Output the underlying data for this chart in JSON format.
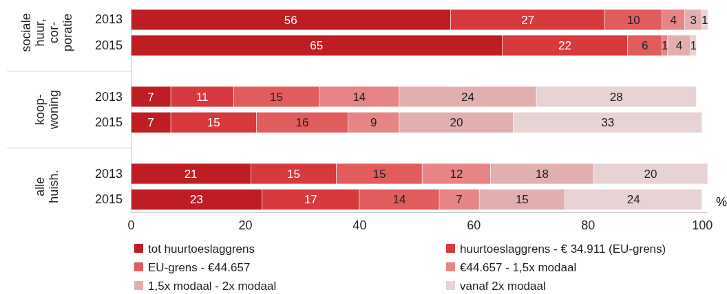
{
  "chart_data": {
    "type": "bar",
    "orientation": "horizontal",
    "stacked": true,
    "data_labels": true,
    "legend": "bottom",
    "xlabel": "%",
    "categories": [
      "2013",
      "2015",
      null,
      "2013",
      "2015",
      null,
      "2013",
      "2015"
    ],
    "xlim": [
      0,
      101
    ],
    "xticks": [
      0,
      20,
      40,
      60,
      80,
      100
    ],
    "annotations": [
      "sociale huur, cor- poratie",
      "koop- woning",
      "alle huish."
    ],
    "series": [
      {
        "name": "tot huurtoeslaggrens",
        "color": "#be1e23",
        "values": [
          56,
          65,
          null,
          7,
          7,
          null,
          21,
          23
        ]
      },
      {
        "name": "huurtoeslaggrens - € 34.911 (EU-grens)",
        "color": "#d63a3c",
        "values": [
          27,
          22,
          null,
          11,
          15,
          null,
          15,
          17
        ]
      },
      {
        "name": "EU-grens - €44.657",
        "color": "#e05c5d",
        "values": [
          10,
          6,
          null,
          15,
          16,
          null,
          15,
          14
        ]
      },
      {
        "name": "€44.657 - 1,5x modaal",
        "color": "#e68486",
        "values": [
          4,
          1,
          null,
          14,
          9,
          null,
          12,
          7
        ]
      },
      {
        "name": "1,5x modaal - 2x modaal",
        "color": "#e2afb0",
        "values": [
          3,
          4,
          null,
          24,
          20,
          null,
          18,
          15
        ]
      },
      {
        "name": "vanaf 2x modaal",
        "color": "#e7d2d4",
        "values": [
          1,
          1,
          null,
          28,
          33,
          null,
          20,
          24
        ]
      }
    ]
  }
}
